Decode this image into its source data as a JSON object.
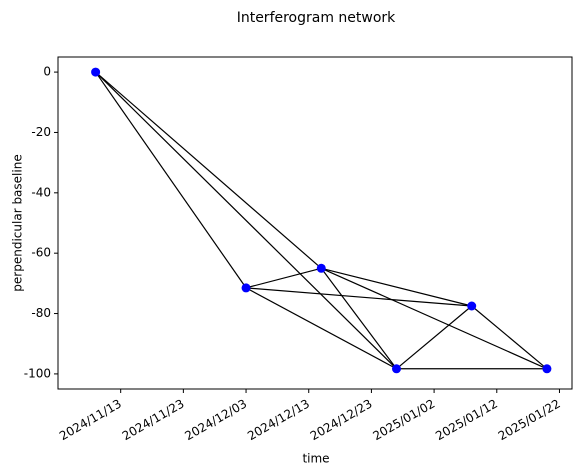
{
  "chart_data": {
    "type": "network",
    "title": "Interferogram network",
    "x_label": "time",
    "y_label": "perpendicular baseline",
    "x": [
      "2024/11/09",
      "2024/12/03",
      "2024/12/15",
      "2024/12/27",
      "2025/01/08",
      "2025/01/20"
    ],
    "values": [
      0,
      -71.5,
      -65,
      -98.3,
      -77.5,
      -98.3
    ],
    "edges": [
      [
        0,
        1
      ],
      [
        0,
        2
      ],
      [
        0,
        3
      ],
      [
        1,
        2
      ],
      [
        1,
        3
      ],
      [
        1,
        4
      ],
      [
        2,
        3
      ],
      [
        2,
        4
      ],
      [
        2,
        5
      ],
      [
        3,
        4
      ],
      [
        3,
        5
      ],
      [
        4,
        5
      ]
    ],
    "color": "#0000ff",
    "edge_color": "#000000",
    "xlim": [
      "2024/11/03",
      "2025/01/24"
    ],
    "xticks": [
      "2024/11/13",
      "2024/11/23",
      "2024/12/03",
      "2024/12/13",
      "2024/12/23",
      "2025/01/02",
      "2025/01/12",
      "2025/01/22"
    ],
    "ylim": [
      -105,
      5
    ],
    "yticks": [
      0,
      -20,
      -40,
      -60,
      -80,
      -100
    ]
  }
}
